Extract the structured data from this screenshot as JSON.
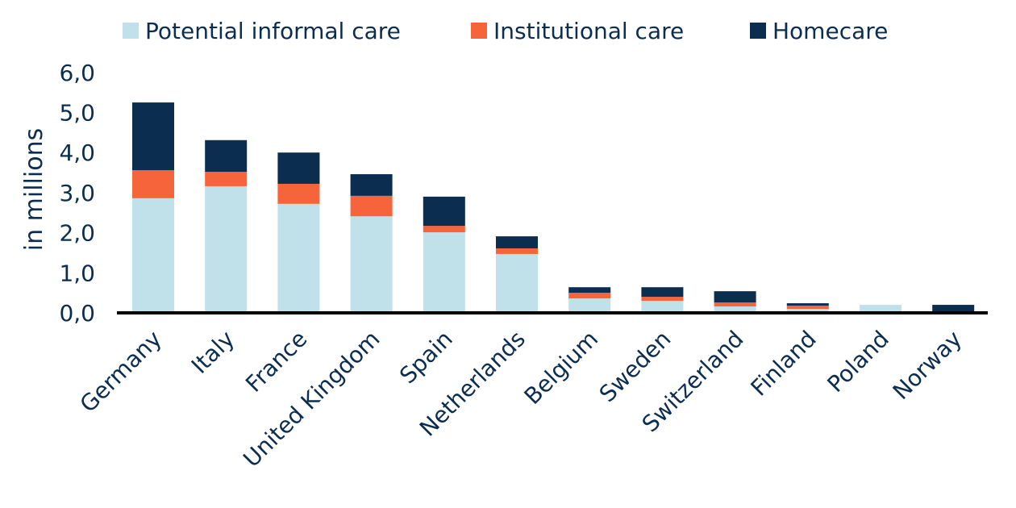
{
  "chart_data": {
    "type": "bar",
    "stacked": true,
    "title": "",
    "xlabel": "",
    "ylabel": "in millions",
    "ylim": [
      0,
      6
    ],
    "yticks": [
      "0,0",
      "1,0",
      "2,0",
      "3,0",
      "4,0",
      "5,0",
      "6,0"
    ],
    "grid": false,
    "legend_position": "top",
    "categories": [
      "Germany",
      "Italy",
      "France",
      "United Kingdom",
      "Spain",
      "Netherlands",
      "Belgium",
      "Sweden",
      "Switzerland",
      "Finland",
      "Poland",
      "Norway"
    ],
    "series": [
      {
        "name": "Potential informal care",
        "color": "#c0e1ea",
        "values": [
          2.86,
          3.16,
          2.72,
          2.41,
          2.01,
          1.47,
          0.36,
          0.3,
          0.16,
          0.1,
          0.2,
          0.04
        ]
      },
      {
        "name": "Institutional care",
        "color": "#f5643a",
        "values": [
          0.7,
          0.36,
          0.5,
          0.51,
          0.16,
          0.14,
          0.14,
          0.1,
          0.1,
          0.08,
          0.0,
          0.0
        ]
      },
      {
        "name": "Homecare",
        "color": "#0b2d4f",
        "values": [
          1.69,
          0.79,
          0.78,
          0.54,
          0.73,
          0.3,
          0.14,
          0.24,
          0.28,
          0.06,
          0.0,
          0.16
        ]
      }
    ]
  }
}
